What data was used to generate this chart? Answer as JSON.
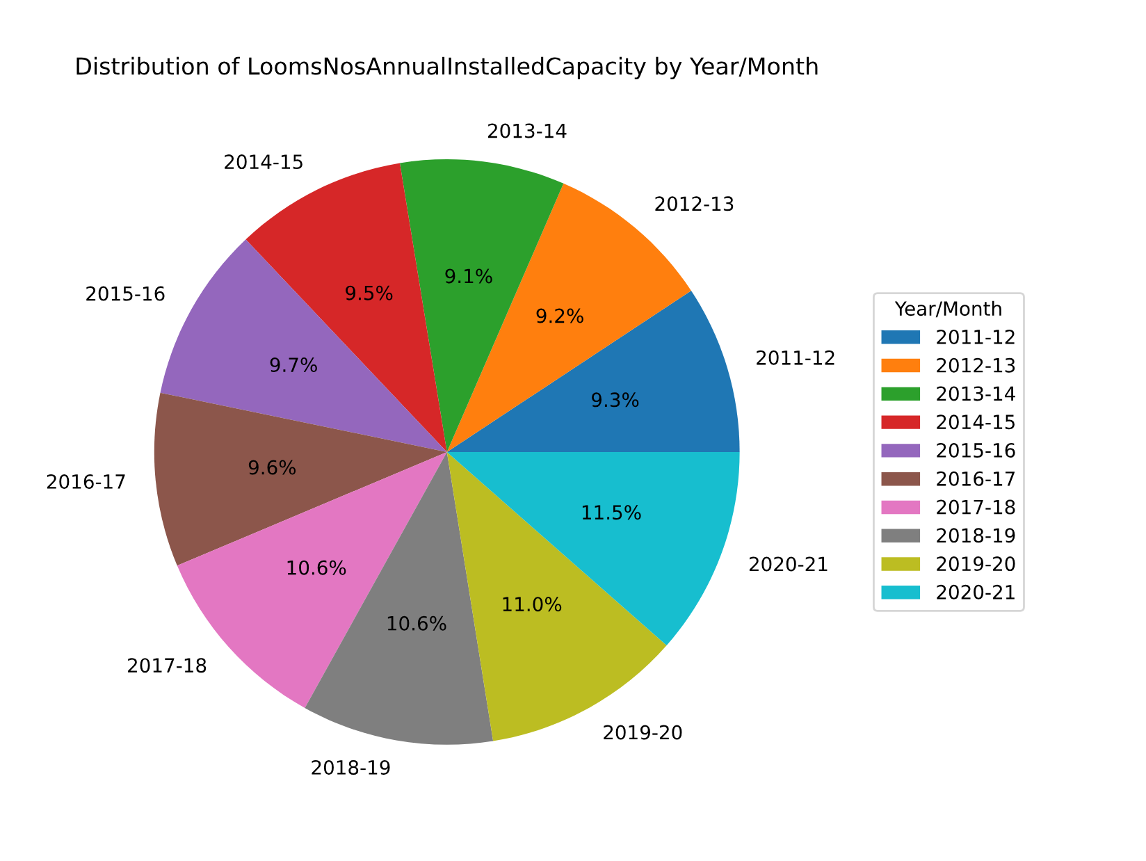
{
  "chart_data": {
    "type": "pie",
    "title": "Distribution of LoomsNosAnnualInstalledCapacity by Year/Month",
    "categories": [
      "2011-12",
      "2012-13",
      "2013-14",
      "2014-15",
      "2015-16",
      "2016-17",
      "2017-18",
      "2018-19",
      "2019-20",
      "2020-21"
    ],
    "values": [
      9.3,
      9.2,
      9.1,
      9.5,
      9.7,
      9.6,
      10.6,
      10.6,
      11.0,
      11.5
    ],
    "value_labels": [
      "9.3%",
      "9.2%",
      "9.1%",
      "9.5%",
      "9.7%",
      "9.6%",
      "10.6%",
      "10.6%",
      "11.0%",
      "11.5%"
    ],
    "colors": [
      "#1f77b4",
      "#ff7f0e",
      "#2ca02c",
      "#d62728",
      "#9467bd",
      "#8c564b",
      "#e377c2",
      "#7f7f7f",
      "#bcbd22",
      "#17becf"
    ],
    "legend_title": "Year/Month",
    "legend": "right"
  }
}
